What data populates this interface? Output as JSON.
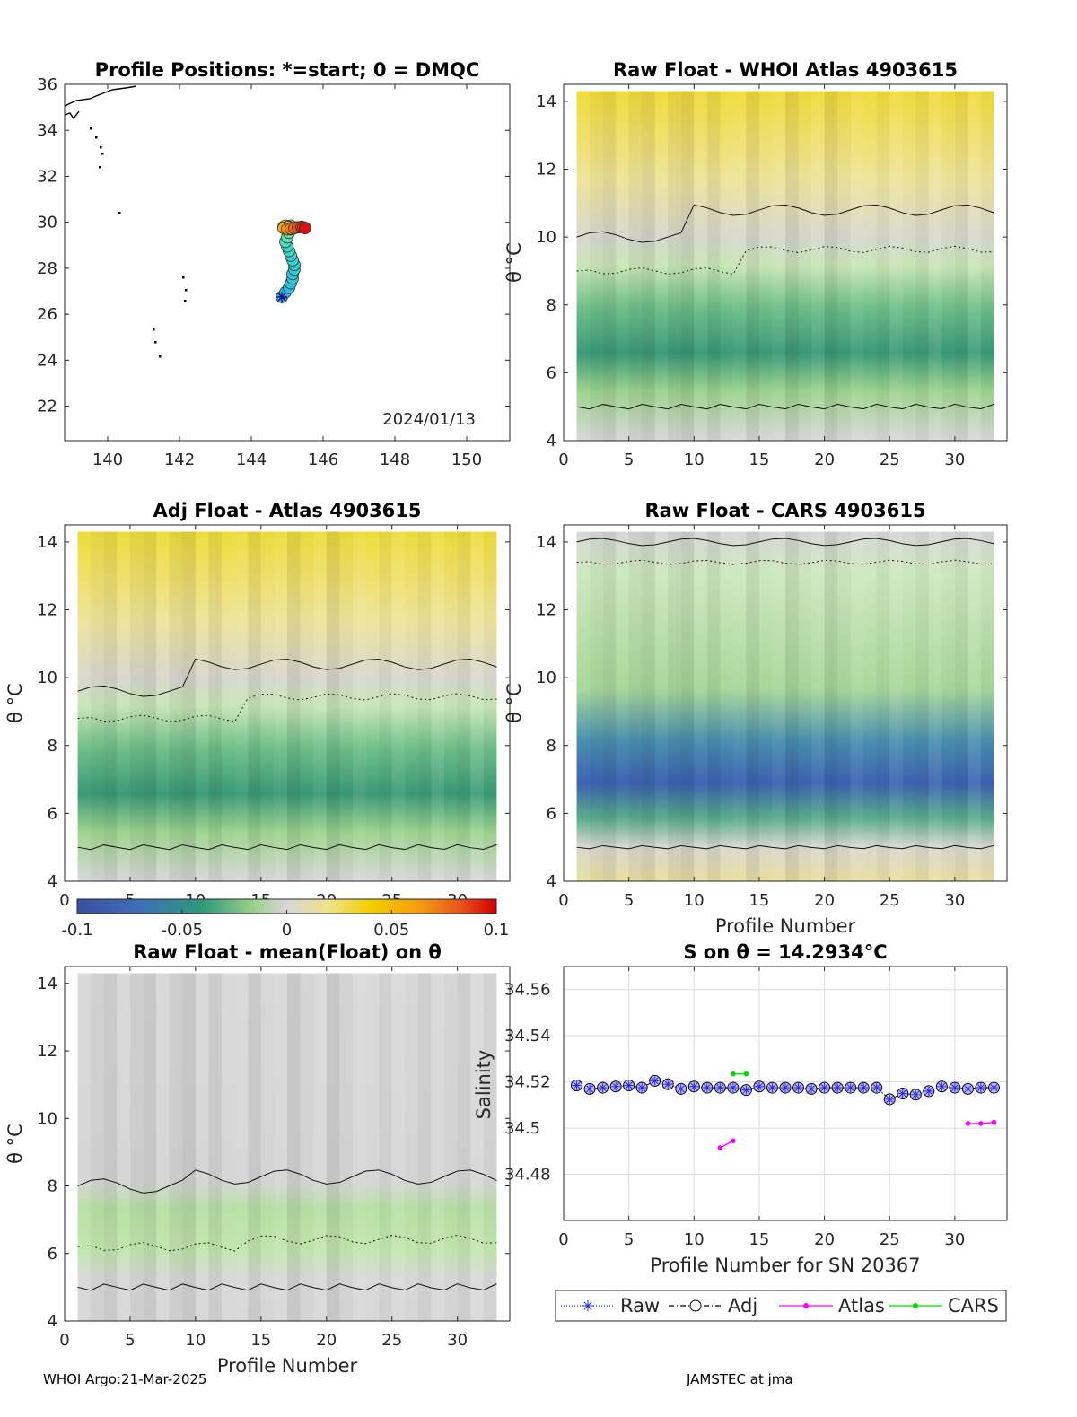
{
  "footer": {
    "left": "WHOI Argo:21-Mar-2025",
    "right": "JAMSTEC at jma"
  },
  "colors": {
    "raw": "#2b2bd6",
    "adj": "#000000",
    "atlas": "#ff00ff",
    "cars": "#00dd00",
    "field_neg": "#3b5aa8",
    "field_zero": "#d6d6d6",
    "field_pos": "#f2d200"
  },
  "chart_data": [
    {
      "type": "map",
      "title": "Profile Positions: *=start; 0 = DMQC",
      "date_label": "2024/01/13",
      "xlim": [
        138.8,
        151.2
      ],
      "ylim": [
        20.5,
        36
      ],
      "xticks": [
        "140",
        "142",
        "144",
        "146",
        "148",
        "150"
      ],
      "yticks": [
        "22",
        "24",
        "26",
        "28",
        "30",
        "32",
        "34",
        "36"
      ],
      "track": {
        "lon": [
          144.85,
          144.95,
          145.05,
          145.1,
          145.15,
          145.15,
          145.2,
          145.2,
          145.15,
          145.1,
          145.05,
          145.0,
          144.95,
          145.0,
          145.05,
          145.1,
          145.15,
          145.1,
          145.05,
          145.0,
          145.0,
          144.95,
          144.9,
          144.95,
          145.0,
          144.9,
          145.0,
          145.1,
          145.2,
          145.3,
          145.4,
          145.45,
          145.5
        ],
        "lat": [
          26.75,
          26.95,
          27.15,
          27.35,
          27.55,
          27.75,
          27.95,
          28.15,
          28.35,
          28.55,
          28.75,
          28.95,
          29.15,
          29.35,
          29.55,
          29.7,
          29.8,
          29.85,
          29.8,
          29.75,
          29.7,
          29.75,
          29.8,
          29.85,
          29.8,
          29.75,
          29.7,
          29.72,
          29.75,
          29.78,
          29.8,
          29.78,
          29.75
        ]
      }
    },
    {
      "type": "heatmap",
      "title": "Raw Float - WHOI Atlas  4903615",
      "xlim": [
        0,
        34
      ],
      "ylim": [
        4,
        14.5
      ],
      "ylabel": "θ °C",
      "xticks": [
        "0",
        "5",
        "10",
        "15",
        "20",
        "25",
        "30"
      ],
      "yticks": [
        "4",
        "6",
        "8",
        "10",
        "12",
        "14"
      ]
    },
    {
      "type": "heatmap",
      "title": "Adj Float - Atlas  4903615",
      "xlim": [
        0,
        34
      ],
      "ylim": [
        4,
        14.5
      ],
      "ylabel": "θ °C",
      "xticks": [
        "0",
        "5",
        "10",
        "15",
        "20",
        "25",
        "30"
      ],
      "yticks": [
        "4",
        "6",
        "8",
        "10",
        "12",
        "14"
      ],
      "colorbar": {
        "range": [
          -0.1,
          0.1
        ],
        "ticks": [
          "-0.1",
          "-0.05",
          "0",
          "0.05",
          "0.1"
        ]
      }
    },
    {
      "type": "heatmap",
      "title": "Raw Float - CARS  4903615",
      "xlim": [
        0,
        34
      ],
      "ylim": [
        4,
        14.5
      ],
      "ylabel": "θ °C",
      "xlabel": "Profile Number",
      "xticks": [
        "0",
        "5",
        "10",
        "15",
        "20",
        "25",
        "30"
      ],
      "yticks": [
        "4",
        "6",
        "8",
        "10",
        "12",
        "14"
      ]
    },
    {
      "type": "heatmap",
      "title": "Raw Float - mean(Float) on θ",
      "xlim": [
        0,
        34
      ],
      "ylim": [
        4,
        14.5
      ],
      "ylabel": "θ °C",
      "xlabel": "Profile Number",
      "xticks": [
        "0",
        "5",
        "10",
        "15",
        "20",
        "25",
        "30"
      ],
      "yticks": [
        "4",
        "6",
        "8",
        "10",
        "12",
        "14"
      ]
    },
    {
      "type": "line",
      "title": "S on θ = 14.2934°C",
      "xlabel": "Profile Number for SN 20367",
      "ylabel": "Salinity",
      "xlim": [
        0,
        34
      ],
      "ylim": [
        34.46,
        34.57
      ],
      "xticks": [
        "0",
        "5",
        "10",
        "15",
        "20",
        "25",
        "30"
      ],
      "yticks": [
        "34.48",
        "34.5",
        "34.52",
        "34.54",
        "34.56"
      ],
      "grid": true,
      "legend_position": "bottom-outside",
      "x": [
        1,
        2,
        3,
        4,
        5,
        6,
        7,
        8,
        9,
        10,
        11,
        12,
        13,
        14,
        15,
        16,
        17,
        18,
        19,
        20,
        21,
        22,
        23,
        24,
        25,
        26,
        27,
        28,
        29,
        30,
        31,
        32,
        33
      ],
      "series": [
        {
          "name": "Raw",
          "values": [
            34.5185,
            34.517,
            34.5175,
            34.518,
            34.5185,
            34.5175,
            34.5205,
            34.519,
            34.517,
            34.518,
            34.5175,
            34.5175,
            34.5175,
            34.5165,
            34.518,
            34.5175,
            34.5175,
            34.5175,
            34.517,
            34.5175,
            34.5175,
            34.5175,
            34.5175,
            34.5175,
            34.5125,
            34.515,
            34.5145,
            34.516,
            34.518,
            34.5175,
            34.517,
            34.5175,
            34.5175
          ]
        },
        {
          "name": "Adj",
          "values": [
            34.5185,
            34.517,
            34.5175,
            34.518,
            34.5185,
            34.5175,
            34.5205,
            34.519,
            34.517,
            34.518,
            34.5175,
            34.5175,
            34.5175,
            34.5165,
            34.518,
            34.5175,
            34.5175,
            34.5175,
            34.517,
            34.5175,
            34.5175,
            34.5175,
            34.5175,
            34.5175,
            34.5125,
            34.515,
            34.5145,
            34.516,
            34.518,
            34.5175,
            34.517,
            34.5175,
            34.5175
          ]
        },
        {
          "name": "Atlas",
          "segments": [
            {
              "x": [
                12,
                13
              ],
              "y": [
                34.4915,
                34.4945
              ]
            },
            {
              "x": [
                31,
                32,
                33
              ],
              "y": [
                34.502,
                34.502,
                34.5025
              ]
            }
          ]
        },
        {
          "name": "CARS",
          "segments": [
            {
              "x": [
                13,
                14
              ],
              "y": [
                34.5235,
                34.5235
              ]
            }
          ]
        }
      ]
    }
  ]
}
